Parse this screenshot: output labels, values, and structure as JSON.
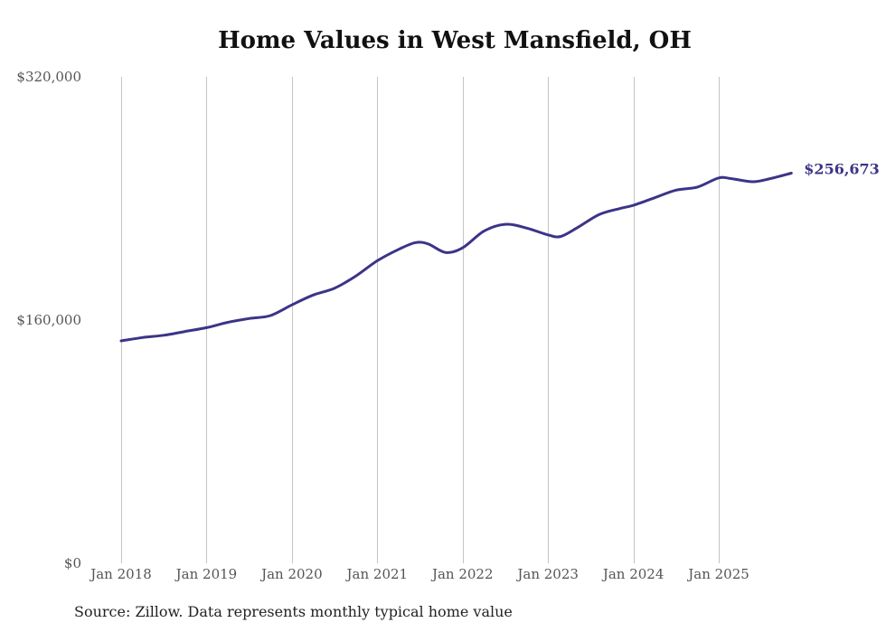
{
  "chart_data": {
    "type": "line",
    "title": "Home Values in West Mansfield, OH",
    "xlabel": "",
    "ylabel": "",
    "ylim": [
      0,
      320000
    ],
    "yticks": [
      0,
      160000,
      320000
    ],
    "ytick_labels": [
      "$0",
      "$160,000",
      "$320,000"
    ],
    "xlim": [
      2018.0,
      2025.85
    ],
    "xticks": [
      2018,
      2019,
      2020,
      2021,
      2022,
      2023,
      2024,
      2025
    ],
    "xtick_labels": [
      "Jan 2018",
      "Jan 2019",
      "Jan 2020",
      "Jan 2021",
      "Jan 2022",
      "Jan 2023",
      "Jan 2024",
      "Jan 2025"
    ],
    "grid": "vertical",
    "series": [
      {
        "name": "Typical home value",
        "color": "#3b3488",
        "x": [
          2018.0,
          2018.25,
          2018.5,
          2018.75,
          2019.0,
          2019.25,
          2019.5,
          2019.75,
          2020.0,
          2020.25,
          2020.5,
          2020.75,
          2021.0,
          2021.25,
          2021.45,
          2021.6,
          2021.8,
          2022.0,
          2022.25,
          2022.5,
          2022.75,
          2023.0,
          2023.15,
          2023.35,
          2023.6,
          2023.85,
          2024.0,
          2024.25,
          2024.5,
          2024.75,
          2025.0,
          2025.15,
          2025.4,
          2025.6,
          2025.85
        ],
        "values": [
          146300,
          148500,
          150000,
          152500,
          155000,
          158500,
          161000,
          163000,
          170000,
          176500,
          181000,
          189000,
          199000,
          206500,
          211000,
          210000,
          204500,
          207500,
          218500,
          223000,
          220500,
          216000,
          215000,
          221000,
          229500,
          233500,
          235500,
          240500,
          245500,
          247500,
          253500,
          253000,
          251000,
          253000,
          256673
        ]
      }
    ],
    "end_label": "$256,673",
    "annotations": [
      "$256,673"
    ],
    "source": "Source: Zillow. Data represents monthly typical home value"
  }
}
